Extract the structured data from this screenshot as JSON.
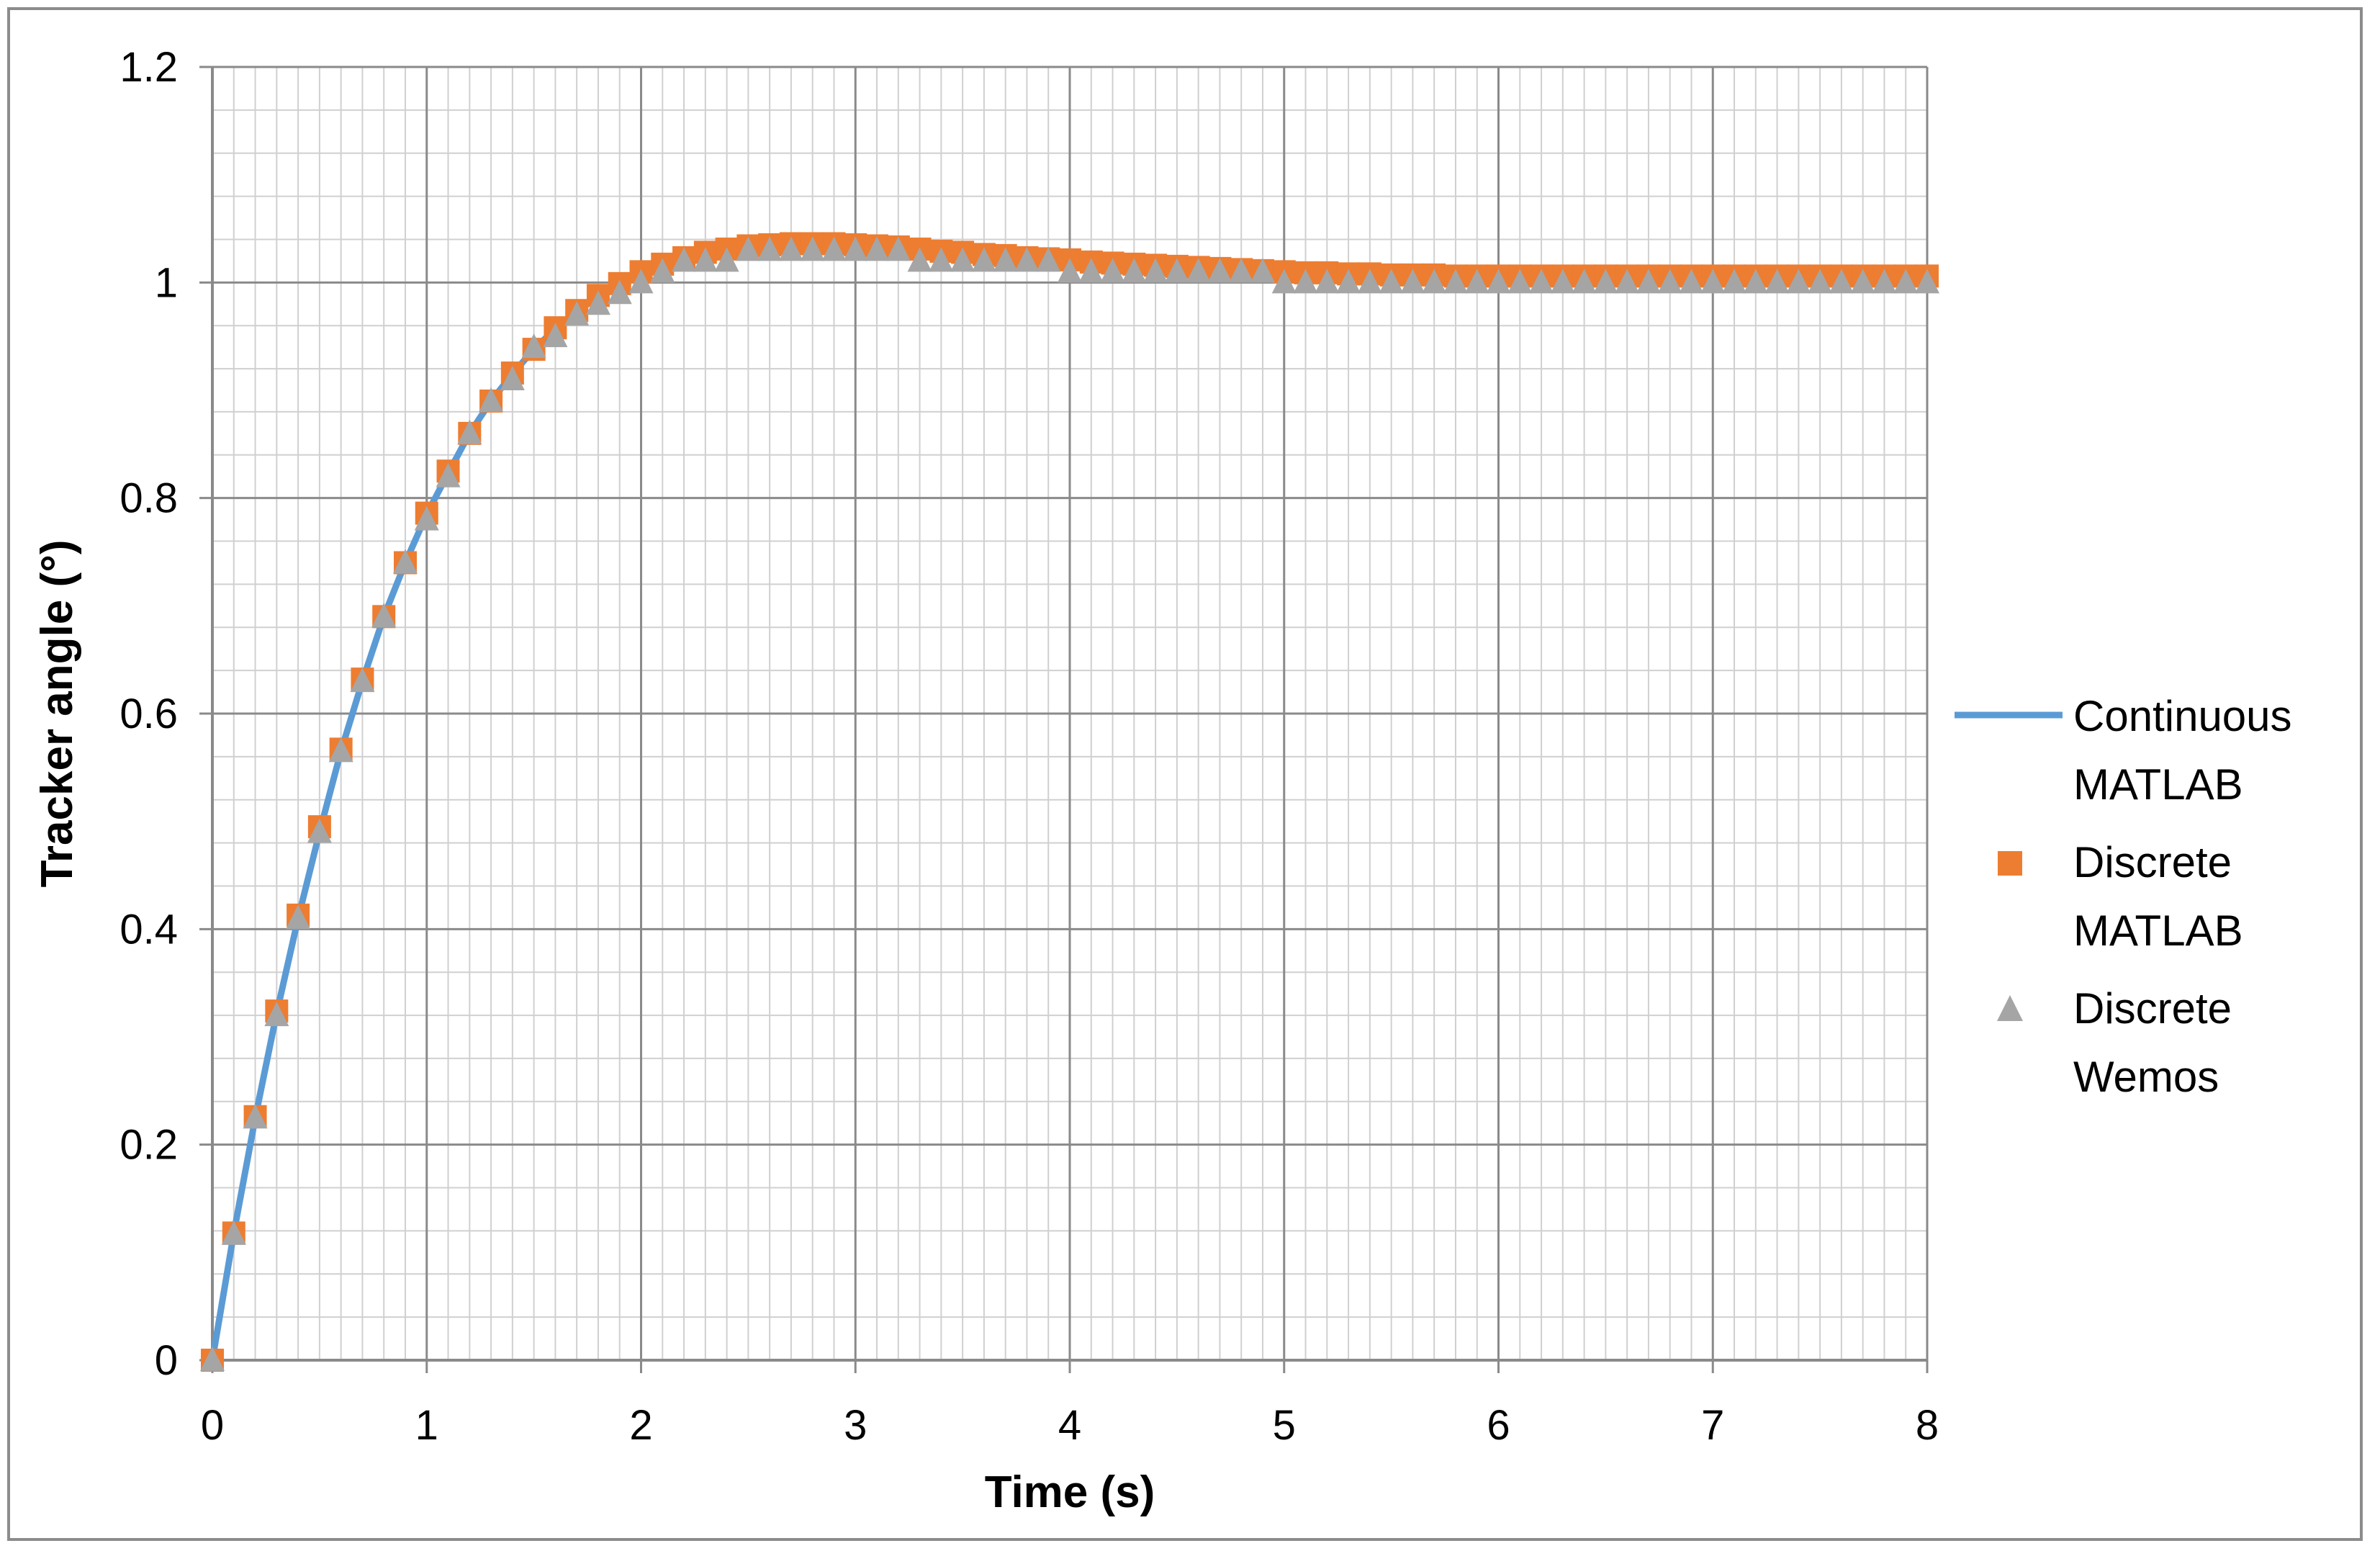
{
  "chart_data": {
    "type": "scatter",
    "xlabel": "Time (s)",
    "ylabel": "Tracker angle (°)",
    "xlim": [
      0,
      8
    ],
    "ylim": [
      0,
      1.2
    ],
    "x_ticks": [
      "0",
      "1",
      "2",
      "3",
      "4",
      "5",
      "6",
      "7",
      "8"
    ],
    "y_ticks": [
      "0",
      "0.2",
      "0.4",
      "0.6",
      "0.8",
      "1",
      "1.2"
    ],
    "major_grid": true,
    "minor_grid": true,
    "legend_position": "right",
    "series": [
      {
        "name": "Continuous MATLAB",
        "type": "line",
        "color": "#5b9bd5",
        "x": [
          0,
          0.1,
          0.2,
          0.3,
          0.4,
          0.5,
          0.6,
          0.7,
          0.8,
          0.9,
          1.0,
          1.1,
          1.2,
          1.3,
          1.4,
          1.5,
          1.6,
          1.7,
          1.8,
          1.9,
          2.0,
          2.2,
          2.4,
          2.6,
          2.8,
          3.0,
          3.2,
          3.4,
          3.6,
          3.8,
          4.0,
          4.5,
          5.0,
          5.5,
          6.0,
          6.5,
          7.0,
          7.5,
          8.0
        ],
        "y": [
          0,
          0.118,
          0.225,
          0.322,
          0.41,
          0.49,
          0.565,
          0.63,
          0.69,
          0.74,
          0.785,
          0.823,
          0.86,
          0.89,
          0.915,
          0.938,
          0.957,
          0.972,
          0.988,
          1.0,
          1.01,
          1.022,
          1.03,
          1.035,
          1.037,
          1.036,
          1.033,
          1.03,
          1.027,
          1.024,
          1.021,
          1.015,
          1.01,
          1.008,
          1.006,
          1.005,
          1.005,
          1.005,
          1.005
        ]
      },
      {
        "name": "Discrete MATLAB",
        "type": "scatter",
        "marker": "square",
        "color": "#ed7d31",
        "x": [
          0,
          0.1,
          0.2,
          0.3,
          0.4,
          0.5,
          0.6,
          0.7,
          0.8,
          0.9,
          1.0,
          1.1,
          1.2,
          1.3,
          1.4,
          1.5,
          1.6,
          1.7,
          1.8,
          1.9,
          2.0,
          2.1,
          2.2,
          2.3,
          2.4,
          2.5,
          2.6,
          2.7,
          2.8,
          2.9,
          3.0,
          3.1,
          3.2,
          3.3,
          3.4,
          3.5,
          3.6,
          3.7,
          3.8,
          3.9,
          4.0,
          4.1,
          4.2,
          4.3,
          4.4,
          4.5,
          4.6,
          4.7,
          4.8,
          4.9,
          5.0,
          5.1,
          5.2,
          5.3,
          5.4,
          5.5,
          5.6,
          5.7,
          5.8,
          5.9,
          6.0,
          6.1,
          6.2,
          6.3,
          6.4,
          6.5,
          6.6,
          6.7,
          6.8,
          6.9,
          7.0,
          7.1,
          7.2,
          7.3,
          7.4,
          7.5,
          7.6,
          7.7,
          7.8,
          7.9,
          8.0
        ],
        "y": [
          0,
          0.118,
          0.226,
          0.324,
          0.413,
          0.495,
          0.567,
          0.632,
          0.69,
          0.74,
          0.786,
          0.825,
          0.86,
          0.89,
          0.916,
          0.938,
          0.958,
          0.974,
          0.988,
          0.999,
          1.01,
          1.017,
          1.023,
          1.028,
          1.031,
          1.034,
          1.035,
          1.036,
          1.036,
          1.036,
          1.035,
          1.034,
          1.033,
          1.031,
          1.029,
          1.028,
          1.026,
          1.025,
          1.023,
          1.022,
          1.021,
          1.019,
          1.018,
          1.017,
          1.016,
          1.015,
          1.014,
          1.013,
          1.012,
          1.011,
          1.01,
          1.009,
          1.009,
          1.008,
          1.008,
          1.007,
          1.007,
          1.007,
          1.006,
          1.006,
          1.006,
          1.006,
          1.006,
          1.006,
          1.006,
          1.006,
          1.006,
          1.006,
          1.006,
          1.006,
          1.006,
          1.006,
          1.006,
          1.006,
          1.006,
          1.006,
          1.006,
          1.006,
          1.006,
          1.006,
          1.006
        ]
      },
      {
        "name": "Discrete Wemos",
        "type": "scatter",
        "marker": "triangle",
        "color": "#a5a5a5",
        "x": [
          0,
          0.1,
          0.2,
          0.3,
          0.4,
          0.5,
          0.6,
          0.7,
          0.8,
          0.9,
          1.0,
          1.1,
          1.2,
          1.3,
          1.4,
          1.5,
          1.6,
          1.7,
          1.8,
          1.9,
          2.0,
          2.1,
          2.2,
          2.3,
          2.4,
          2.5,
          2.6,
          2.7,
          2.8,
          2.9,
          3.0,
          3.1,
          3.2,
          3.3,
          3.4,
          3.5,
          3.6,
          3.7,
          3.8,
          3.9,
          4.0,
          4.1,
          4.2,
          4.3,
          4.4,
          4.5,
          4.6,
          4.7,
          4.8,
          4.9,
          5.0,
          5.1,
          5.2,
          5.3,
          5.4,
          5.5,
          5.6,
          5.7,
          5.8,
          5.9,
          6.0,
          6.1,
          6.2,
          6.3,
          6.4,
          6.5,
          6.6,
          6.7,
          6.8,
          6.9,
          7.0,
          7.1,
          7.2,
          7.3,
          7.4,
          7.5,
          7.6,
          7.7,
          7.8,
          7.9,
          8.0
        ],
        "y": [
          0,
          0.117,
          0.225,
          0.32,
          0.41,
          0.49,
          0.565,
          0.63,
          0.69,
          0.74,
          0.78,
          0.82,
          0.86,
          0.89,
          0.91,
          0.94,
          0.95,
          0.97,
          0.98,
          0.99,
          1.0,
          1.01,
          1.02,
          1.02,
          1.02,
          1.03,
          1.03,
          1.03,
          1.03,
          1.03,
          1.03,
          1.03,
          1.03,
          1.02,
          1.02,
          1.02,
          1.02,
          1.02,
          1.02,
          1.02,
          1.01,
          1.01,
          1.01,
          1.01,
          1.01,
          1.01,
          1.01,
          1.01,
          1.01,
          1.01,
          1.0,
          1.0,
          1.0,
          1.0,
          1.0,
          1.0,
          1.0,
          1.0,
          1.0,
          1.0,
          1.0,
          1.0,
          1.0,
          1.0,
          1.0,
          1.0,
          1.0,
          1.0,
          1.0,
          1.0,
          1.0,
          1.0,
          1.0,
          1.0,
          1.0,
          1.0,
          1.0,
          1.0,
          1.0,
          1.0,
          1.0
        ]
      }
    ],
    "legend": [
      {
        "line1": "Continuous",
        "line2": "MATLAB"
      },
      {
        "line1": "Discrete",
        "line2": "MATLAB"
      },
      {
        "line1": "Discrete",
        "line2": "Wemos"
      }
    ]
  }
}
